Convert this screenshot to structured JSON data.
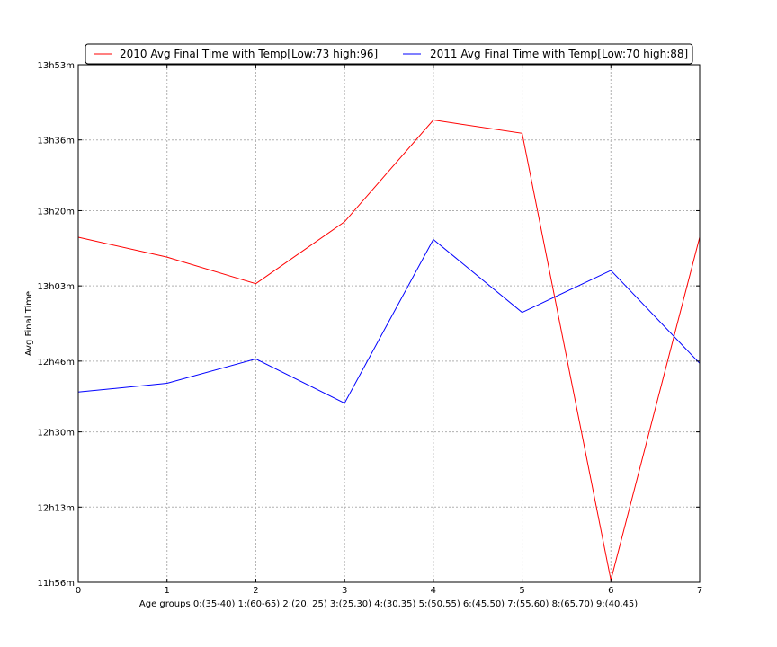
{
  "chart_data": {
    "type": "line",
    "xlabel": "Age groups 0:(35-40) 1:(60-65) 2:(20, 25) 3:(25,30) 4:(30,35) 5:(50,55) 6:(45,50) 7:(55,60) 8:(65,70) 9:(40,45)",
    "ylabel": "Avg Final Time",
    "x": [
      0,
      1,
      2,
      3,
      4,
      5,
      6,
      7
    ],
    "x_ticks": [
      "0",
      "1",
      "2",
      "3",
      "4",
      "5",
      "6",
      "7"
    ],
    "xlim": [
      0,
      7
    ],
    "y_unit": "minutes",
    "ylim": [
      716,
      833
    ],
    "y_ticks": [
      {
        "value": 716,
        "label": "11h56m"
      },
      {
        "value": 733,
        "label": "12h13m"
      },
      {
        "value": 750,
        "label": "12h30m"
      },
      {
        "value": 766,
        "label": "12h46m"
      },
      {
        "value": 783,
        "label": "13h03m"
      },
      {
        "value": 800,
        "label": "13h20m"
      },
      {
        "value": 816,
        "label": "13h36m"
      },
      {
        "value": 833,
        "label": "13h53m"
      }
    ],
    "grid": true,
    "legend_position": "top",
    "series": [
      {
        "name": "2010 Avg Final Time with Temp[Low:73 high:96]",
        "color": "#ff0000",
        "values": [
          794,
          789.5,
          783.5,
          797.5,
          820.5,
          817.5,
          716.5,
          794
        ]
      },
      {
        "name": "2011 Avg Final Time with Temp[Low:70 high:88]",
        "color": "#0000ff",
        "values": [
          759,
          761,
          766.5,
          756.5,
          793.5,
          777,
          786.5,
          765.5
        ]
      }
    ]
  }
}
